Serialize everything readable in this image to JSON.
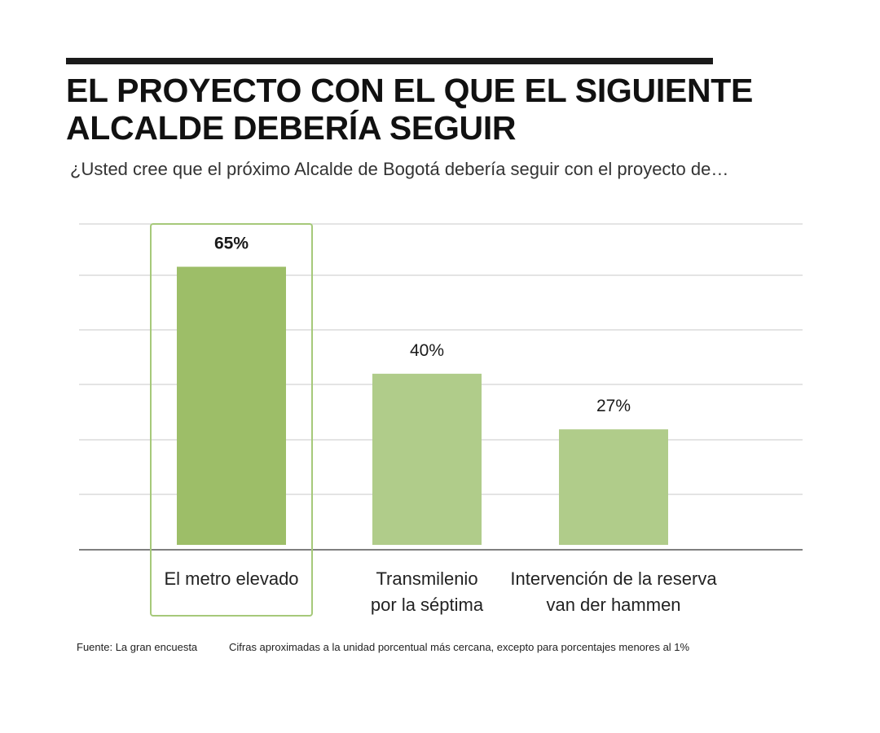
{
  "header": {
    "title_line1": "EL PROYECTO CON EL QUE EL SIGUIENTE",
    "title_line2": "ALCALDE DEBERÍA SEGUIR",
    "subtitle": "¿Usted cree que el próximo Alcalde de Bogotá debería seguir con el proyecto de…"
  },
  "chart_data": {
    "type": "bar",
    "title": "EL PROYECTO CON EL QUE EL SIGUIENTE ALCALDE DEBERÍA SEGUIR",
    "subtitle": "¿Usted cree que el próximo Alcalde de Bogotá debería seguir con el proyecto de…",
    "categories": [
      [
        "El metro elevado"
      ],
      [
        "Transmilenio",
        "por la séptima"
      ],
      [
        "Intervención de la reserva",
        "van der hammen"
      ]
    ],
    "values": [
      65,
      40,
      27
    ],
    "value_labels": [
      "65%",
      "40%",
      "27%"
    ],
    "highlighted_index": 0,
    "ylim": [
      0,
      75
    ],
    "grid": true,
    "xlabel": "",
    "ylabel": "",
    "colors": {
      "highlight_bar": "#9dbe68",
      "bar": "#b0cc8a",
      "highlight_outline": "#a6c97a",
      "grid": "#c8c8c8",
      "axis": "#555555"
    }
  },
  "footer": {
    "source": "Fuente: La gran encuesta",
    "note": "Cifras aproximadas a la unidad porcentual más cercana, excepto para porcentajes menores al 1%"
  }
}
